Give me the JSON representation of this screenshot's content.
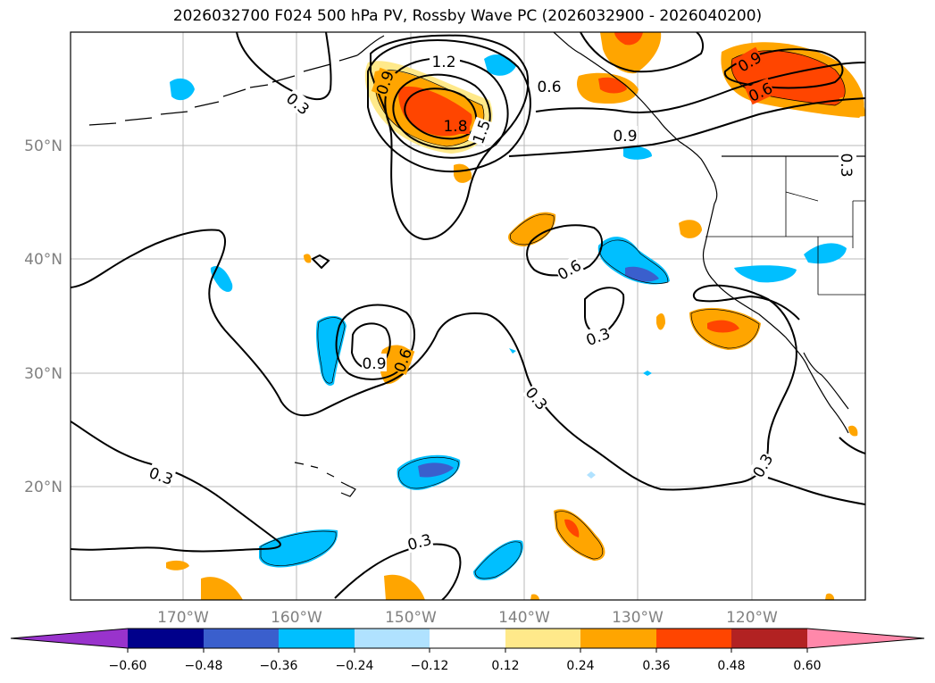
{
  "title": "2026032700 F024 500 hPa PV, Rossby Wave PC (2026032900 - 2026040200)",
  "lat_labels": [
    "50°N",
    "40°N",
    "30°N",
    "20°N"
  ],
  "lon_labels": [
    "170°W",
    "160°W",
    "150°W",
    "140°W",
    "130°W",
    "120°W"
  ],
  "contour_labels": [
    "1.2",
    "0.9",
    "0.3",
    "1.8",
    "1.5",
    "0.6",
    "0.9",
    "0.9",
    "0.6",
    "0.3",
    "0.6",
    "0.3",
    "0.9",
    "0.6",
    "0.3",
    "0.3",
    "0.3",
    "0.3"
  ],
  "colorbar": {
    "ticks": [
      "−0.60",
      "−0.48",
      "−0.36",
      "−0.24",
      "−0.12",
      "0.12",
      "0.24",
      "0.36",
      "0.48",
      "0.60"
    ],
    "colors": [
      "#9933cc",
      "#00008b",
      "#3a5fcd",
      "#00bfff",
      "#b0e2ff",
      "#ffffff",
      "#ffe98a",
      "#ffa500",
      "#ff4500",
      "#b22222",
      "#ff88aa"
    ]
  }
}
